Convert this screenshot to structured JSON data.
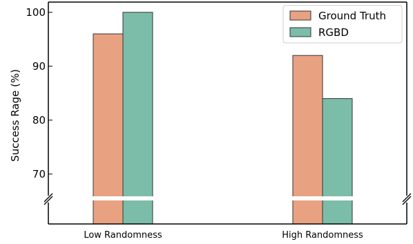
{
  "chart_data": {
    "type": "bar",
    "categories": [
      "Low Randomness",
      "High Randomness"
    ],
    "series": [
      {
        "name": "Ground Truth",
        "values": [
          96,
          92
        ],
        "color": "#e8a282"
      },
      {
        "name": "RGBD",
        "values": [
          100,
          84
        ],
        "color": "#7bbda8"
      }
    ],
    "title": "",
    "xlabel": "",
    "ylabel": "Success Rage (%)",
    "ylim": [
      65,
      100
    ],
    "lower_display_value": 60,
    "broken_axis": true,
    "yticks": [
      70,
      80,
      90,
      100
    ],
    "legend_position": "top-right",
    "grid": false
  }
}
